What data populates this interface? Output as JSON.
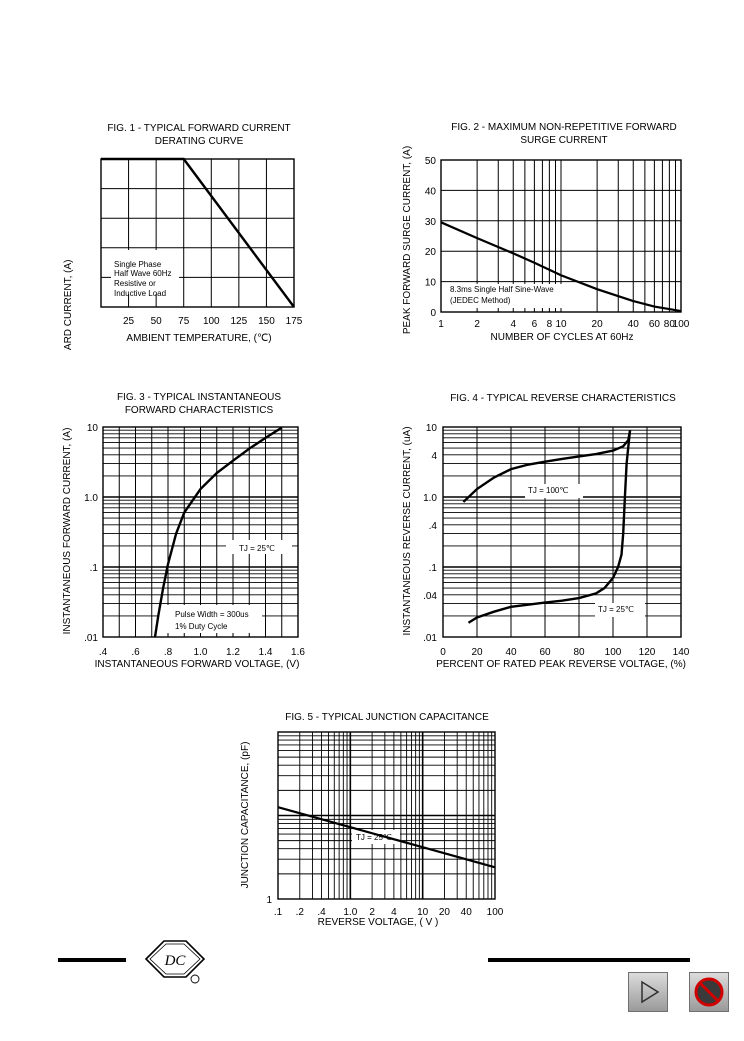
{
  "chart_data": [
    {
      "type": "line",
      "title_lines": [
        "FIG. 1 - TYPICAL FORWARD CURRENT",
        "DERATING CURVE"
      ],
      "xlabel": "AMBIENT TEMPERATURE, (℃)",
      "ylabel": "AVERAGE FORWARD CURRENT, (A)",
      "xlim": [
        0,
        175
      ],
      "ylim": [
        0,
        1
      ],
      "x_ticks": [
        "25",
        "50",
        "75",
        "100",
        "125",
        "150",
        "175"
      ],
      "y_ticks": [],
      "series": [
        {
          "x": [
            0,
            75,
            175
          ],
          "y": [
            1,
            1,
            0
          ]
        }
      ],
      "annotation_lines": [
        "Single Phase",
        "Half Wave 60Hz",
        "Resistive or",
        "Inductive Load"
      ]
    },
    {
      "type": "line",
      "title_lines": [
        "FIG. 2 - MAXIMUM NON-REPETITIVE FORWARD",
        "SURGE CURRENT"
      ],
      "xlabel": "NUMBER OF CYCLES AT 60Hz",
      "ylabel": "PEAK FORWARD SURGE CURRENT, (A)",
      "x_scale": "log",
      "xlim": [
        1,
        100
      ],
      "ylim": [
        0,
        50
      ],
      "x_ticks": [
        "1",
        "2",
        "4",
        "6",
        "8",
        "10",
        "20",
        "40",
        "60",
        "80",
        "100"
      ],
      "y_ticks": [
        "0",
        "10",
        "20",
        "30",
        "40",
        "50"
      ],
      "series": [
        {
          "x": [
            1,
            2,
            4,
            6,
            10,
            20,
            40,
            60,
            100
          ],
          "y": [
            29.5,
            24.3,
            19.3,
            16.2,
            12.1,
            7.5,
            3.6,
            1.8,
            0.3
          ]
        }
      ],
      "annotation_lines": [
        "8.3ms Single Half Sine-Wave",
        "(JEDEC Method)"
      ]
    },
    {
      "type": "line",
      "title_lines": [
        "FIG. 3 - TYPICAL INSTANTANEOUS",
        "FORWARD CHARACTERISTICS"
      ],
      "xlabel": "INSTANTANEOUS FORWARD VOLTAGE, (V)",
      "ylabel": "INSTANTANEOUS FORWARD CURRENT, (A)",
      "y_scale": "log",
      "xlim": [
        0.4,
        1.6
      ],
      "ylim": [
        0.01,
        10
      ],
      "x_ticks": [
        ".4",
        ".6",
        ".8",
        "1.0",
        "1.2",
        "1.4",
        "1.6"
      ],
      "y_ticks": [
        ".01",
        ".1",
        "1.0",
        "10"
      ],
      "series": [
        {
          "x": [
            0.72,
            0.74,
            0.77,
            0.8,
            0.85,
            0.9,
            1.0,
            1.1,
            1.2,
            1.3,
            1.4,
            1.5
          ],
          "y": [
            0.01,
            0.02,
            0.05,
            0.11,
            0.3,
            0.6,
            1.3,
            2.2,
            3.3,
            4.9,
            7.0,
            9.8
          ]
        }
      ],
      "annotations": [
        "TJ = 25℃",
        "Pulse Width = 300us",
        "1% Duty Cycle"
      ]
    },
    {
      "type": "line",
      "title_lines": [
        "FIG. 4 - TYPICAL REVERSE CHARACTERISTICS"
      ],
      "xlabel": "PERCENT OF RATED PEAK REVERSE VOLTAGE, (%)",
      "ylabel": "INSTANTANEOUS REVERSE CURRENT, (uA)",
      "y_scale": "log",
      "xlim": [
        0,
        140
      ],
      "ylim": [
        0.01,
        10
      ],
      "x_ticks": [
        "0",
        "20",
        "40",
        "60",
        "80",
        "100",
        "120",
        "140"
      ],
      "y_ticks": [
        ".01",
        ".04",
        ".1",
        ".4",
        "1.0",
        "4",
        "10"
      ],
      "series": [
        {
          "name": "TJ = 100℃",
          "x": [
            12,
            20,
            30,
            40,
            50,
            60,
            70,
            80,
            90,
            100,
            106,
            109,
            110
          ],
          "y": [
            0.85,
            1.3,
            1.9,
            2.5,
            2.9,
            3.2,
            3.5,
            3.8,
            4.1,
            4.6,
            5.3,
            6.5,
            8.8
          ]
        },
        {
          "name": "TJ = 25℃",
          "x": [
            15,
            20,
            30,
            40,
            50,
            60,
            70,
            80,
            90,
            95,
            100,
            103,
            105,
            106,
            107,
            108,
            110
          ],
          "y": [
            0.016,
            0.019,
            0.023,
            0.027,
            0.029,
            0.031,
            0.033,
            0.036,
            0.042,
            0.05,
            0.07,
            0.1,
            0.15,
            0.3,
            1.0,
            3.0,
            9.0
          ]
        }
      ]
    },
    {
      "type": "line",
      "title_lines": [
        "FIG. 5 - TYPICAL JUNCTION CAPACITANCE"
      ],
      "xlabel": "REVERSE VOLTAGE, ( V )",
      "ylabel": "JUNCTION CAPACITANCE, (pF)",
      "x_scale": "log",
      "xlim": [
        0.1,
        100
      ],
      "x_ticks": [
        ".1",
        ".2",
        ".4",
        "1.0",
        "2",
        "4",
        "10",
        "20",
        "40",
        "100"
      ],
      "y_ticks": [
        "1"
      ],
      "series": [
        {
          "name": "TJ = 25℃",
          "x": [
            0.1,
            1,
            10,
            100
          ],
          "y": [
            0.55,
            0.43,
            0.31,
            0.19
          ]
        }
      ]
    }
  ],
  "footer": {
    "logo_text": "DC",
    "nav_next_icon": "play-triangle-icon",
    "nav_stop_icon": "no-entry-icon"
  }
}
